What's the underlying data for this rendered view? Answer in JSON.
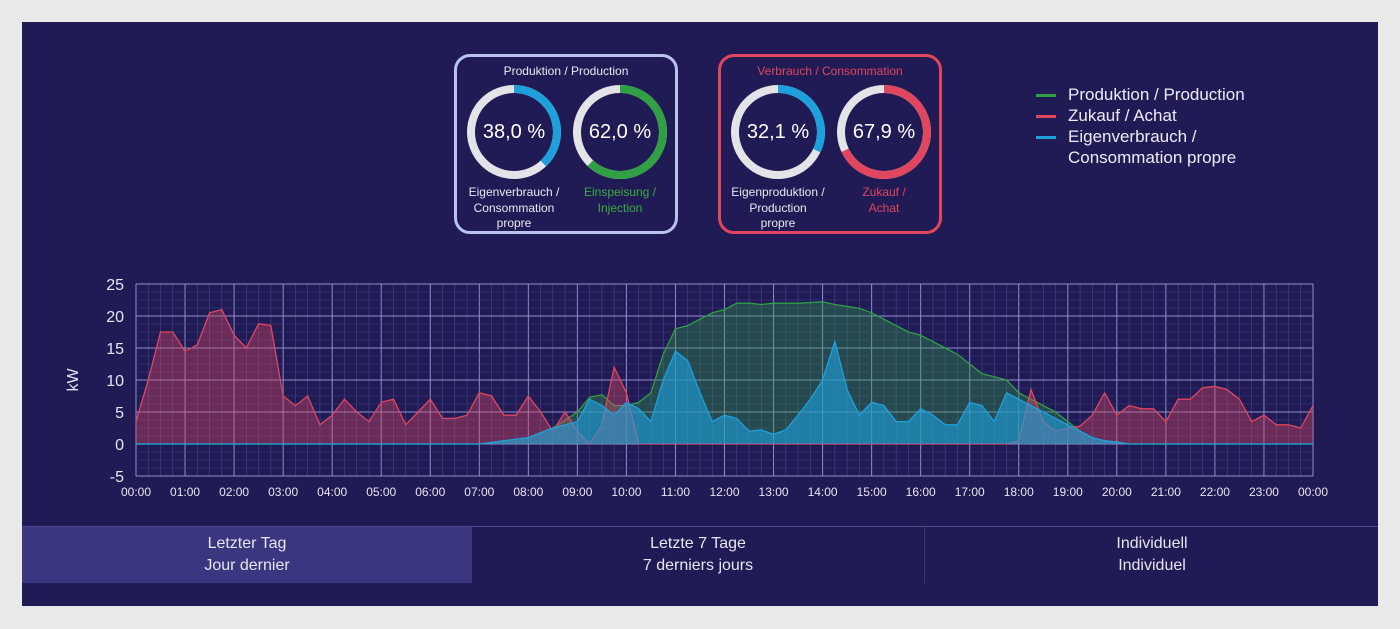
{
  "production_card": {
    "title": "Produktion / Production",
    "self_consumption": {
      "value": 38.0,
      "label": "38,0 %",
      "caption": [
        "Eigenverbrauch /",
        "Consommation",
        "propre"
      ]
    },
    "injection": {
      "value": 62.0,
      "label": "62,0 %",
      "caption": [
        "Einspeisung /",
        "Injection"
      ]
    }
  },
  "consumption_card": {
    "title": "Verbrauch / Consommation",
    "self_production": {
      "value": 32.1,
      "label": "32,1 %",
      "caption": [
        "Eigenproduktion /",
        "Production",
        "propre"
      ]
    },
    "purchase": {
      "value": 67.9,
      "label": "67,9 %",
      "caption": [
        "Zukauf /",
        "Achat"
      ]
    }
  },
  "colors": {
    "production": "#2fa043",
    "purchase": "#e0465e",
    "self_consumption": "#1ea0dd",
    "ring_track": "#e4e4e8",
    "background": "#211b55"
  },
  "legend": [
    {
      "key": "production",
      "lines": [
        "Produktion / Production"
      ]
    },
    {
      "key": "purchase",
      "lines": [
        "Zukauf / Achat"
      ]
    },
    {
      "key": "self_consumption",
      "lines": [
        "Eigenverbrauch /",
        "Consommation propre"
      ]
    }
  ],
  "tabs": [
    {
      "lines": [
        "Letzter Tag",
        "Jour dernier"
      ],
      "active": true
    },
    {
      "lines": [
        "Letzte 7 Tage",
        "7 derniers jours"
      ],
      "active": false
    },
    {
      "lines": [
        "Individuell",
        "Individuel"
      ],
      "active": false
    }
  ],
  "chart_data": {
    "type": "area",
    "ylabel": "kW",
    "ylim": [
      -5,
      25
    ],
    "yticks": [
      -5,
      0,
      5,
      10,
      15,
      20,
      25
    ],
    "xlim": [
      "00:00",
      "24:00"
    ],
    "xtick_labels": [
      "00:00",
      "01:00",
      "02:00",
      "03:00",
      "04:00",
      "05:00",
      "06:00",
      "07:00",
      "08:00",
      "09:00",
      "10:00",
      "11:00",
      "12:00",
      "13:00",
      "14:00",
      "15:00",
      "16:00",
      "17:00",
      "18:00",
      "19:00",
      "20:00",
      "21:00",
      "22:00",
      "23:00",
      "00:00"
    ],
    "grid": true,
    "legend_position": "top-right",
    "series": [
      {
        "key": "production",
        "name": "Produktion / Production",
        "points": [
          [
            "00:00",
            0
          ],
          [
            "07:00",
            0
          ],
          [
            "07:30",
            0.5
          ],
          [
            "08:00",
            1.0
          ],
          [
            "08:30",
            2.5
          ],
          [
            "09:00",
            5.0
          ],
          [
            "09:15",
            7.3
          ],
          [
            "09:30",
            7.7
          ],
          [
            "09:45",
            6.0
          ],
          [
            "10:00",
            6.0
          ],
          [
            "10:15",
            6.5
          ],
          [
            "10:30",
            8.0
          ],
          [
            "10:45",
            14.0
          ],
          [
            "11:00",
            18.0
          ],
          [
            "11:15",
            18.5
          ],
          [
            "11:30",
            19.5
          ],
          [
            "11:45",
            20.5
          ],
          [
            "12:00",
            21.0
          ],
          [
            "12:15",
            22.0
          ],
          [
            "12:30",
            22.0
          ],
          [
            "12:45",
            21.8
          ],
          [
            "13:00",
            22.0
          ],
          [
            "13:30",
            22.0
          ],
          [
            "14:00",
            22.2
          ],
          [
            "14:15",
            21.8
          ],
          [
            "14:30",
            21.5
          ],
          [
            "14:45",
            21.2
          ],
          [
            "15:00",
            20.5
          ],
          [
            "15:15",
            19.5
          ],
          [
            "15:30",
            18.5
          ],
          [
            "15:45",
            17.5
          ],
          [
            "16:00",
            17.0
          ],
          [
            "16:15",
            16.0
          ],
          [
            "16:30",
            15.0
          ],
          [
            "16:45",
            14.0
          ],
          [
            "17:00",
            12.5
          ],
          [
            "17:15",
            11.0
          ],
          [
            "17:30",
            10.5
          ],
          [
            "17:45",
            10.0
          ],
          [
            "18:00",
            8.0
          ],
          [
            "18:15",
            7.0
          ],
          [
            "18:30",
            6.0
          ],
          [
            "18:45",
            5.0
          ],
          [
            "19:00",
            3.5
          ],
          [
            "19:15",
            2.0
          ],
          [
            "19:30",
            1.0
          ],
          [
            "19:45",
            0.5
          ],
          [
            "20:00",
            0.3
          ],
          [
            "20:15",
            0
          ],
          [
            "24:00",
            0
          ]
        ]
      },
      {
        "key": "purchase",
        "name": "Zukauf / Achat",
        "points": [
          [
            "00:00",
            3.5
          ],
          [
            "00:15",
            10.0
          ],
          [
            "00:30",
            17.5
          ],
          [
            "00:45",
            17.5
          ],
          [
            "01:00",
            14.5
          ],
          [
            "01:15",
            15.5
          ],
          [
            "01:30",
            20.5
          ],
          [
            "01:45",
            21.0
          ],
          [
            "02:00",
            17.0
          ],
          [
            "02:15",
            15.0
          ],
          [
            "02:30",
            18.8
          ],
          [
            "02:45",
            18.5
          ],
          [
            "03:00",
            7.5
          ],
          [
            "03:15",
            6.0
          ],
          [
            "03:30",
            7.5
          ],
          [
            "03:45",
            3.0
          ],
          [
            "04:00",
            4.5
          ],
          [
            "04:15",
            7.0
          ],
          [
            "04:30",
            5.0
          ],
          [
            "04:45",
            3.5
          ],
          [
            "05:00",
            6.5
          ],
          [
            "05:15",
            7.0
          ],
          [
            "05:30",
            3.0
          ],
          [
            "05:45",
            5.0
          ],
          [
            "06:00",
            7.0
          ],
          [
            "06:15",
            4.0
          ],
          [
            "06:30",
            4.0
          ],
          [
            "06:45",
            4.5
          ],
          [
            "07:00",
            8.0
          ],
          [
            "07:15",
            7.5
          ],
          [
            "07:30",
            4.5
          ],
          [
            "07:45",
            4.5
          ],
          [
            "08:00",
            7.5
          ],
          [
            "08:15",
            5.0
          ],
          [
            "08:30",
            2.0
          ],
          [
            "08:45",
            5.0
          ],
          [
            "09:00",
            2.0
          ],
          [
            "09:15",
            0.0
          ],
          [
            "09:30",
            3.0
          ],
          [
            "09:45",
            12.0
          ],
          [
            "10:00",
            8.0
          ],
          [
            "10:15",
            0
          ],
          [
            "17:45",
            0
          ],
          [
            "18:00",
            0.5
          ],
          [
            "18:15",
            8.5
          ],
          [
            "18:30",
            3.5
          ],
          [
            "18:45",
            2.0
          ],
          [
            "19:00",
            2.5
          ],
          [
            "19:15",
            2.8
          ],
          [
            "19:30",
            4.5
          ],
          [
            "19:45",
            8.0
          ],
          [
            "20:00",
            4.5
          ],
          [
            "20:15",
            6.0
          ],
          [
            "20:30",
            5.5
          ],
          [
            "20:45",
            5.5
          ],
          [
            "21:00",
            3.5
          ],
          [
            "21:15",
            7.0
          ],
          [
            "21:30",
            7.0
          ],
          [
            "21:45",
            8.8
          ],
          [
            "22:00",
            9.0
          ],
          [
            "22:15",
            8.5
          ],
          [
            "22:30",
            7.0
          ],
          [
            "22:45",
            3.5
          ],
          [
            "23:00",
            4.5
          ],
          [
            "23:15",
            3.0
          ],
          [
            "23:30",
            3.0
          ],
          [
            "23:45",
            2.5
          ],
          [
            "24:00",
            6.0
          ]
        ]
      },
      {
        "key": "self_consumption",
        "name": "Eigenverbrauch / Consommation propre",
        "points": [
          [
            "00:00",
            0
          ],
          [
            "07:00",
            0
          ],
          [
            "07:30",
            0.5
          ],
          [
            "08:00",
            1.0
          ],
          [
            "08:30",
            2.5
          ],
          [
            "09:00",
            3.5
          ],
          [
            "09:15",
            7.0
          ],
          [
            "09:30",
            6.0
          ],
          [
            "09:45",
            4.5
          ],
          [
            "10:00",
            6.5
          ],
          [
            "10:15",
            5.5
          ],
          [
            "10:30",
            3.5
          ],
          [
            "10:45",
            10.0
          ],
          [
            "11:00",
            14.5
          ],
          [
            "11:15",
            13.0
          ],
          [
            "11:30",
            8.0
          ],
          [
            "11:45",
            3.5
          ],
          [
            "12:00",
            4.5
          ],
          [
            "12:15",
            4.0
          ],
          [
            "12:30",
            2.0
          ],
          [
            "12:45",
            2.2
          ],
          [
            "13:00",
            1.5
          ],
          [
            "13:15",
            2.2
          ],
          [
            "13:30",
            4.5
          ],
          [
            "13:45",
            7.0
          ],
          [
            "14:00",
            10.0
          ],
          [
            "14:15",
            16.0
          ],
          [
            "14:30",
            8.5
          ],
          [
            "14:45",
            4.5
          ],
          [
            "15:00",
            6.5
          ],
          [
            "15:15",
            6.0
          ],
          [
            "15:30",
            3.5
          ],
          [
            "15:45",
            3.5
          ],
          [
            "16:00",
            5.5
          ],
          [
            "16:15",
            4.5
          ],
          [
            "16:30",
            3.0
          ],
          [
            "16:45",
            3.0
          ],
          [
            "17:00",
            6.5
          ],
          [
            "17:15",
            6.0
          ],
          [
            "17:30",
            3.5
          ],
          [
            "17:45",
            8.0
          ],
          [
            "18:00",
            7.0
          ],
          [
            "18:15",
            6.0
          ],
          [
            "18:30",
            5.0
          ],
          [
            "18:45",
            4.0
          ],
          [
            "19:00",
            3.0
          ],
          [
            "19:15",
            2.0
          ],
          [
            "19:30",
            1.0
          ],
          [
            "19:45",
            0.5
          ],
          [
            "20:00",
            0.3
          ],
          [
            "20:15",
            0
          ],
          [
            "24:00",
            0
          ]
        ]
      }
    ]
  }
}
